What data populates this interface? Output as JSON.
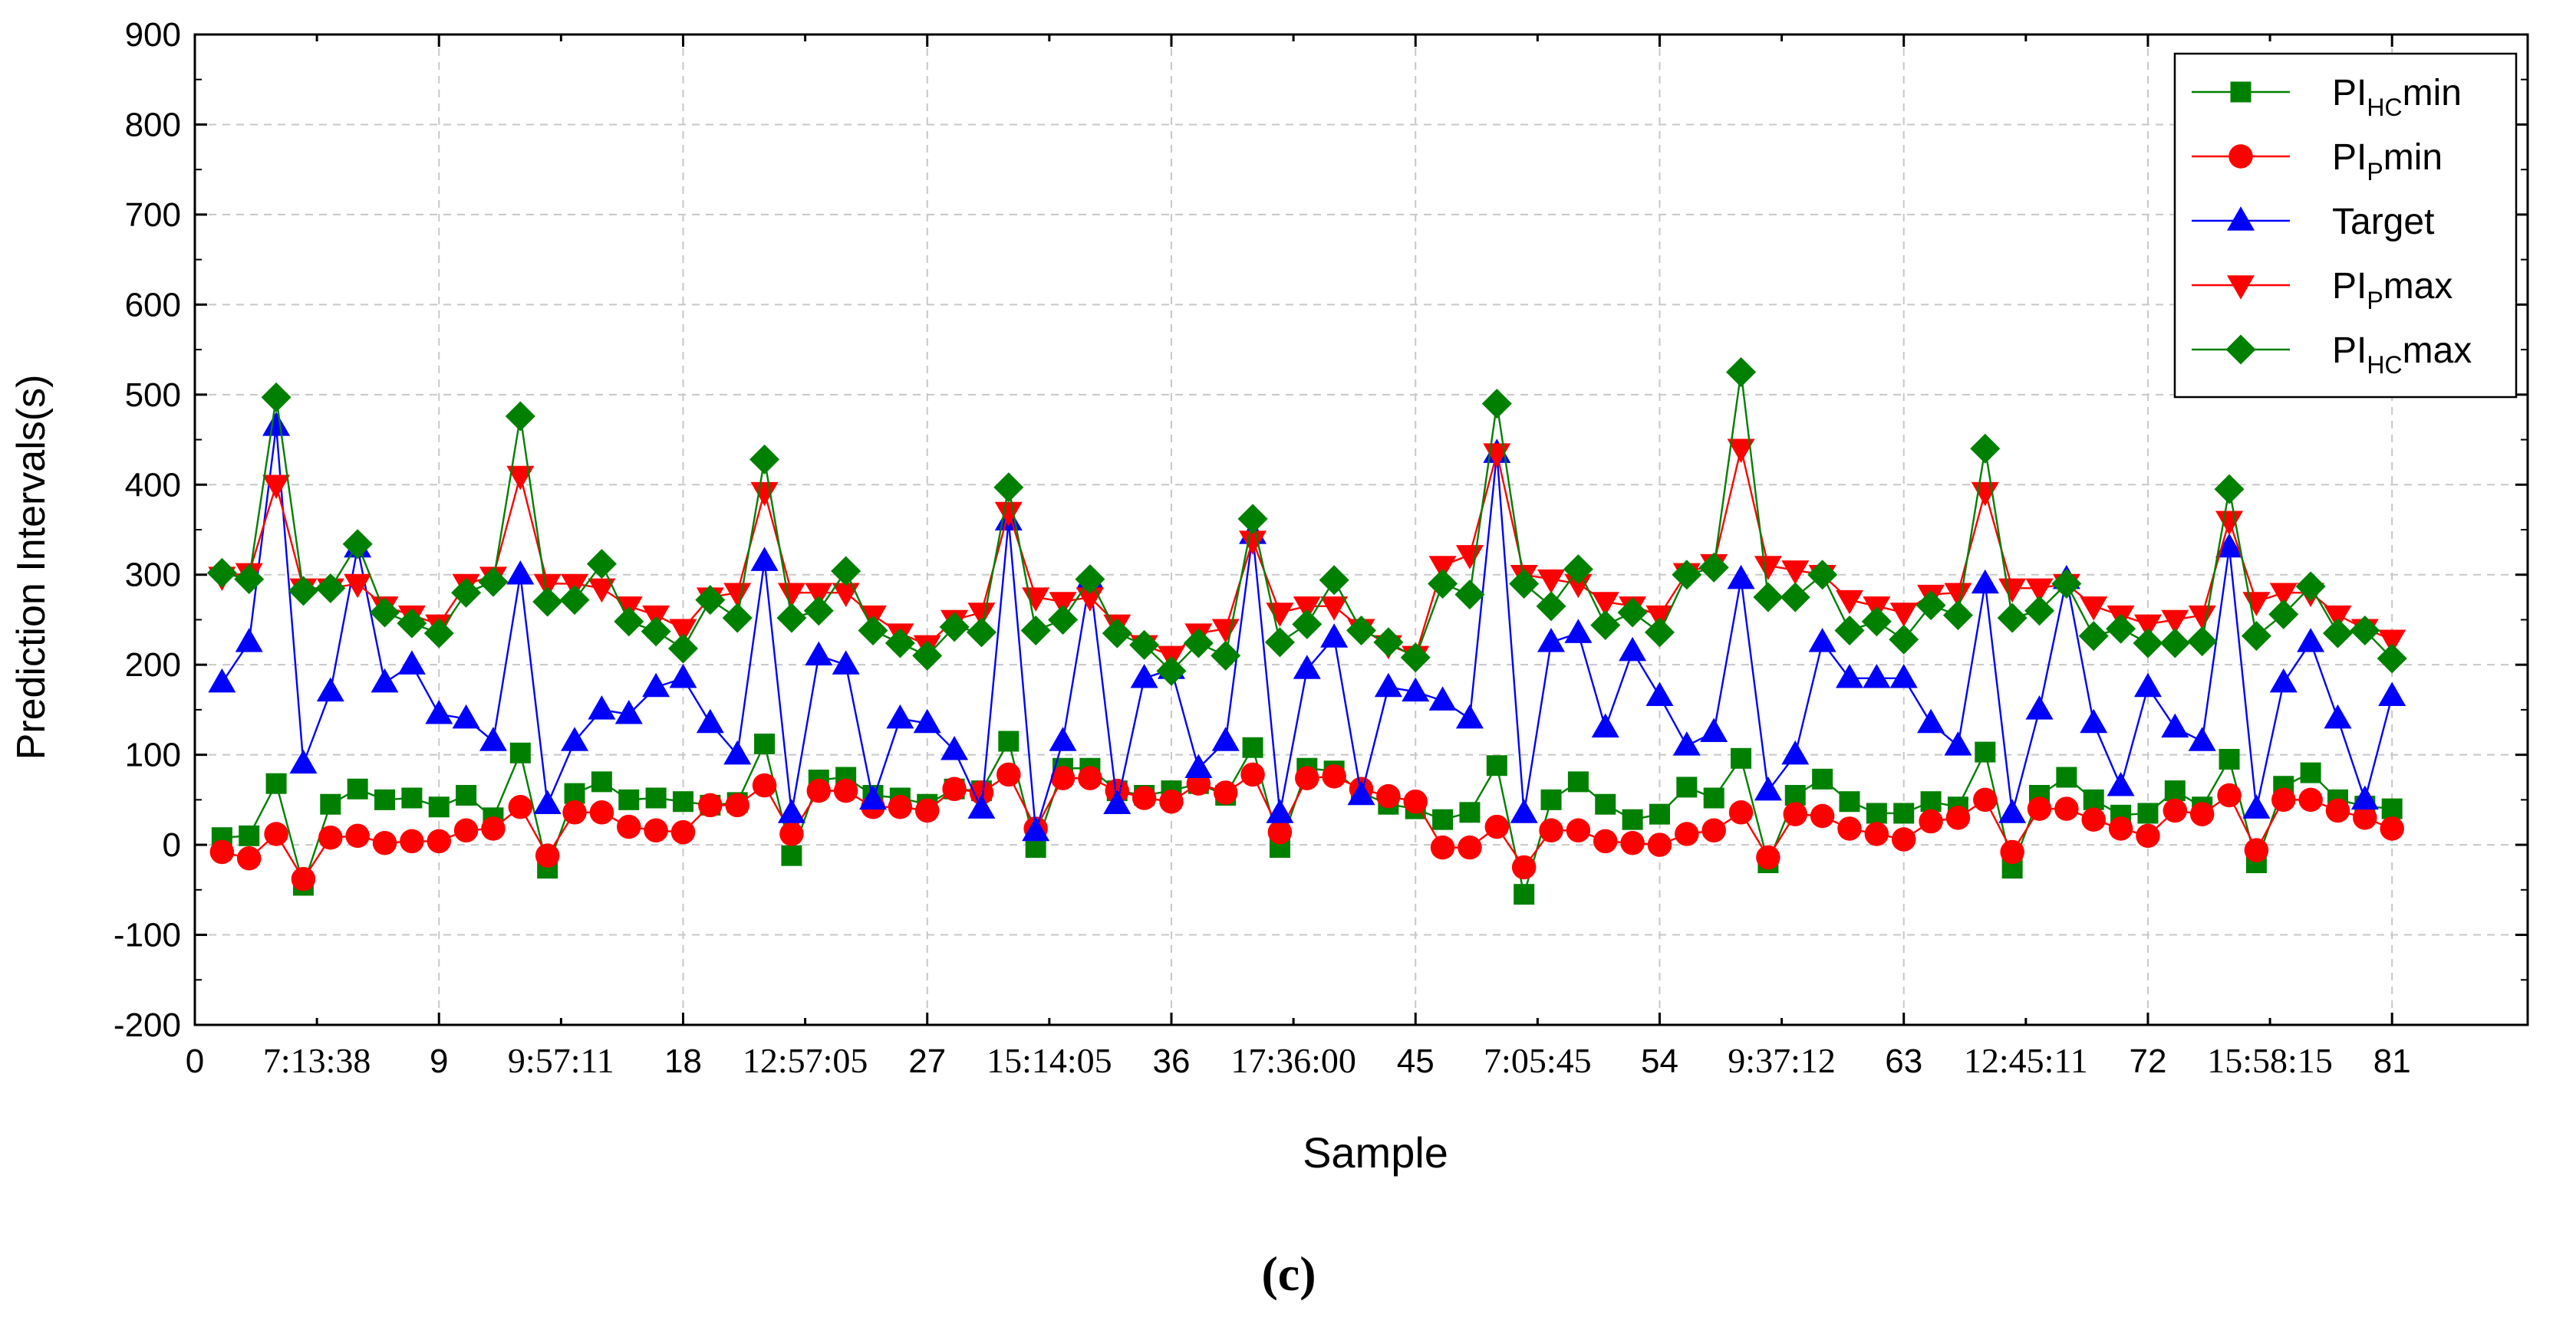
{
  "chart_data": {
    "type": "line",
    "ylabel": "Prediction Intervals(s)",
    "xlabel": "Sample",
    "caption": "(c)",
    "xlim": [
      0,
      86
    ],
    "ylim": [
      -200,
      900
    ],
    "yticks": [
      -200,
      -100,
      0,
      100,
      200,
      300,
      400,
      500,
      600,
      700,
      800,
      900
    ],
    "grid": true,
    "legend_position": "top-right",
    "xtick_labels": [
      {
        "pos": 0,
        "label": "0",
        "style": "number"
      },
      {
        "pos": 4.5,
        "label": "7:13:38",
        "style": "time"
      },
      {
        "pos": 9,
        "label": "9",
        "style": "number"
      },
      {
        "pos": 13.5,
        "label": "9:57:11",
        "style": "time"
      },
      {
        "pos": 18,
        "label": "18",
        "style": "number"
      },
      {
        "pos": 22.5,
        "label": "12:57:05",
        "style": "time"
      },
      {
        "pos": 27,
        "label": "27",
        "style": "number"
      },
      {
        "pos": 31.5,
        "label": "15:14:05",
        "style": "time"
      },
      {
        "pos": 36,
        "label": "36",
        "style": "number"
      },
      {
        "pos": 40.5,
        "label": "17:36:00",
        "style": "time"
      },
      {
        "pos": 45,
        "label": "45",
        "style": "number"
      },
      {
        "pos": 49.5,
        "label": "7:05:45",
        "style": "time"
      },
      {
        "pos": 54,
        "label": "54",
        "style": "number"
      },
      {
        "pos": 58.5,
        "label": "9:37:12",
        "style": "time"
      },
      {
        "pos": 63,
        "label": "63",
        "style": "number"
      },
      {
        "pos": 67.5,
        "label": "12:45:11",
        "style": "time"
      },
      {
        "pos": 72,
        "label": "72",
        "style": "number"
      },
      {
        "pos": 76.5,
        "label": "15:58:15",
        "style": "time"
      },
      {
        "pos": 81,
        "label": "81",
        "style": "number"
      }
    ],
    "series": [
      {
        "name": "PI_HC min",
        "legend_main": "PI",
        "legend_sub": "HC",
        "legend_tail": "min",
        "color": "#008000",
        "marker": "square",
        "values": [
          8,
          10,
          68,
          -45,
          45,
          62,
          50,
          52,
          42,
          55,
          30,
          102,
          -26,
          57,
          70,
          50,
          52,
          48,
          44,
          47,
          112,
          -12,
          72,
          75,
          55,
          52,
          45,
          62,
          60,
          115,
          -3,
          85,
          85,
          60,
          55,
          60,
          68,
          55,
          108,
          -3,
          85,
          82,
          58,
          45,
          40,
          28,
          36,
          88,
          -55,
          50,
          70,
          45,
          28,
          34,
          64,
          52,
          96,
          -20,
          55,
          73,
          48,
          35,
          35,
          48,
          42,
          103,
          -26,
          55,
          75,
          50,
          33,
          35,
          60,
          42,
          95,
          -20,
          65,
          80,
          50,
          43,
          40
        ]
      },
      {
        "name": "PI_P min",
        "legend_main": "PI",
        "legend_sub": "P",
        "legend_tail": "min",
        "color": "#ff0000",
        "marker": "circle",
        "values": [
          -8,
          -15,
          12,
          -38,
          8,
          10,
          2,
          4,
          4,
          16,
          18,
          42,
          -12,
          36,
          36,
          20,
          16,
          14,
          44,
          44,
          66,
          12,
          60,
          60,
          42,
          42,
          38,
          62,
          58,
          78,
          18,
          74,
          74,
          60,
          52,
          48,
          68,
          58,
          78,
          14,
          74,
          76,
          62,
          54,
          48,
          -3,
          -3,
          20,
          -25,
          16,
          16,
          4,
          2,
          0,
          12,
          16,
          36,
          -14,
          34,
          32,
          18,
          12,
          6,
          26,
          30,
          50,
          -8,
          40,
          40,
          28,
          18,
          10,
          38,
          34,
          55,
          -6,
          50,
          50,
          38,
          30,
          18
        ]
      },
      {
        "name": "Target",
        "legend_main": "Target",
        "legend_sub": "",
        "legend_tail": "",
        "color": "#0000ff",
        "marker": "triangle-up",
        "values": [
          180,
          225,
          465,
          90,
          170,
          330,
          180,
          200,
          145,
          140,
          115,
          300,
          45,
          115,
          150,
          145,
          175,
          185,
          135,
          100,
          315,
          35,
          210,
          200,
          50,
          140,
          135,
          105,
          40,
          360,
          15,
          115,
          295,
          45,
          185,
          195,
          85,
          115,
          345,
          35,
          195,
          230,
          55,
          175,
          170,
          160,
          140,
          435,
          35,
          225,
          235,
          130,
          215,
          165,
          110,
          125,
          295,
          60,
          100,
          225,
          185,
          185,
          185,
          135,
          110,
          290,
          35,
          150,
          295,
          135,
          65,
          175,
          130,
          115,
          330,
          40,
          180,
          225,
          140,
          50,
          165
        ]
      },
      {
        "name": "PI_P max",
        "legend_main": "PI",
        "legend_sub": "P",
        "legend_tail": "max",
        "color": "#ff0000",
        "marker": "triangle-down",
        "values": [
          298,
          302,
          400,
          285,
          285,
          290,
          265,
          255,
          245,
          290,
          298,
          410,
          290,
          290,
          285,
          265,
          255,
          240,
          275,
          280,
          392,
          280,
          280,
          280,
          255,
          235,
          222,
          250,
          258,
          370,
          275,
          270,
          275,
          245,
          222,
          210,
          235,
          240,
          338,
          258,
          265,
          265,
          240,
          222,
          210,
          310,
          322,
          435,
          300,
          295,
          290,
          270,
          265,
          255,
          302,
          312,
          440,
          310,
          305,
          300,
          272,
          265,
          258,
          278,
          280,
          392,
          285,
          285,
          290,
          265,
          255,
          245,
          250,
          255,
          360,
          270,
          280,
          280,
          255,
          240,
          228
        ]
      },
      {
        "name": "PI_HC max",
        "legend_main": "PI",
        "legend_sub": "HC",
        "legend_tail": "max",
        "color": "#008000",
        "marker": "diamond",
        "values": [
          302,
          295,
          497,
          282,
          285,
          334,
          258,
          246,
          235,
          280,
          292,
          476,
          270,
          272,
          312,
          248,
          237,
          218,
          272,
          252,
          428,
          252,
          260,
          304,
          238,
          224,
          210,
          242,
          236,
          397,
          238,
          250,
          295,
          235,
          222,
          193,
          224,
          210,
          362,
          225,
          245,
          294,
          238,
          225,
          208,
          290,
          278,
          490,
          290,
          265,
          306,
          244,
          258,
          236,
          300,
          308,
          525,
          275,
          275,
          300,
          238,
          248,
          228,
          266,
          255,
          440,
          252,
          260,
          290,
          232,
          240,
          224,
          224,
          226,
          395,
          232,
          256,
          287,
          235,
          238,
          207
        ]
      }
    ]
  }
}
